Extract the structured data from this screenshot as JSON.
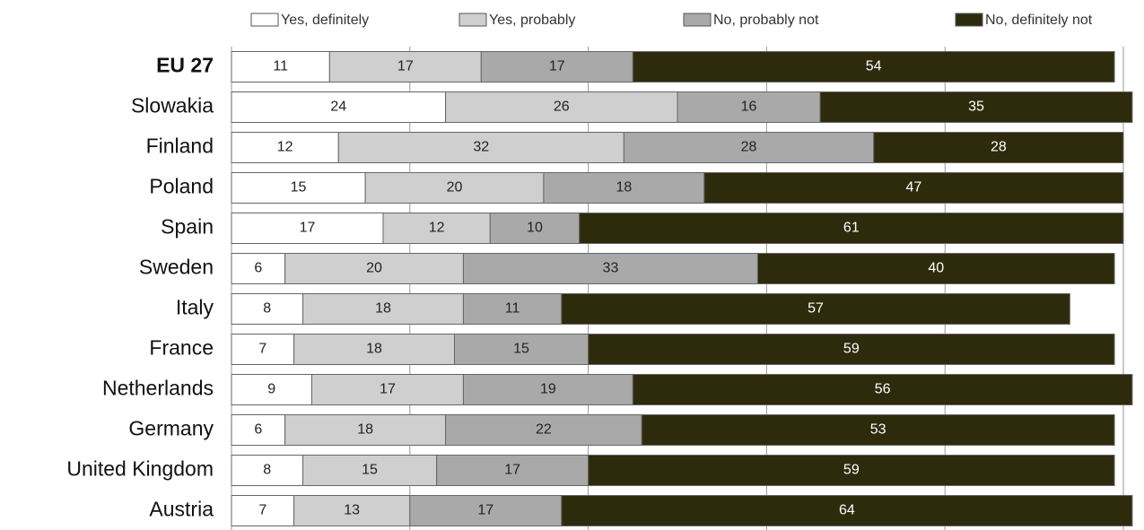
{
  "chart_data": {
    "type": "bar",
    "orientation": "horizontal",
    "stacked": true,
    "categories": [
      "EU 27",
      "Slowakia",
      "Finland",
      "Poland",
      "Spain",
      "Sweden",
      "Italy",
      "France",
      "Netherlands",
      "Germany",
      "United Kingdom",
      "Austria"
    ],
    "series": [
      {
        "name": "Yes, definitely",
        "color": "#ffffff",
        "values": [
          11,
          24,
          12,
          15,
          17,
          6,
          8,
          7,
          9,
          6,
          8,
          7
        ]
      },
      {
        "name": "Yes, probably",
        "color": "#cfcfcf",
        "values": [
          17,
          26,
          32,
          20,
          12,
          20,
          18,
          18,
          17,
          18,
          15,
          13
        ]
      },
      {
        "name": "No, probably not",
        "color": "#a9a9a9",
        "values": [
          17,
          16,
          28,
          18,
          10,
          33,
          11,
          15,
          19,
          22,
          17,
          17
        ]
      },
      {
        "name": "No, definitely not",
        "color": "#2e2b0d",
        "values": [
          54,
          35,
          28,
          47,
          61,
          40,
          57,
          59,
          56,
          53,
          59,
          64
        ]
      }
    ],
    "xlim": [
      0,
      100
    ],
    "xticks": [
      0,
      20,
      40,
      60,
      80,
      100
    ],
    "grid": true,
    "legend": "top"
  }
}
